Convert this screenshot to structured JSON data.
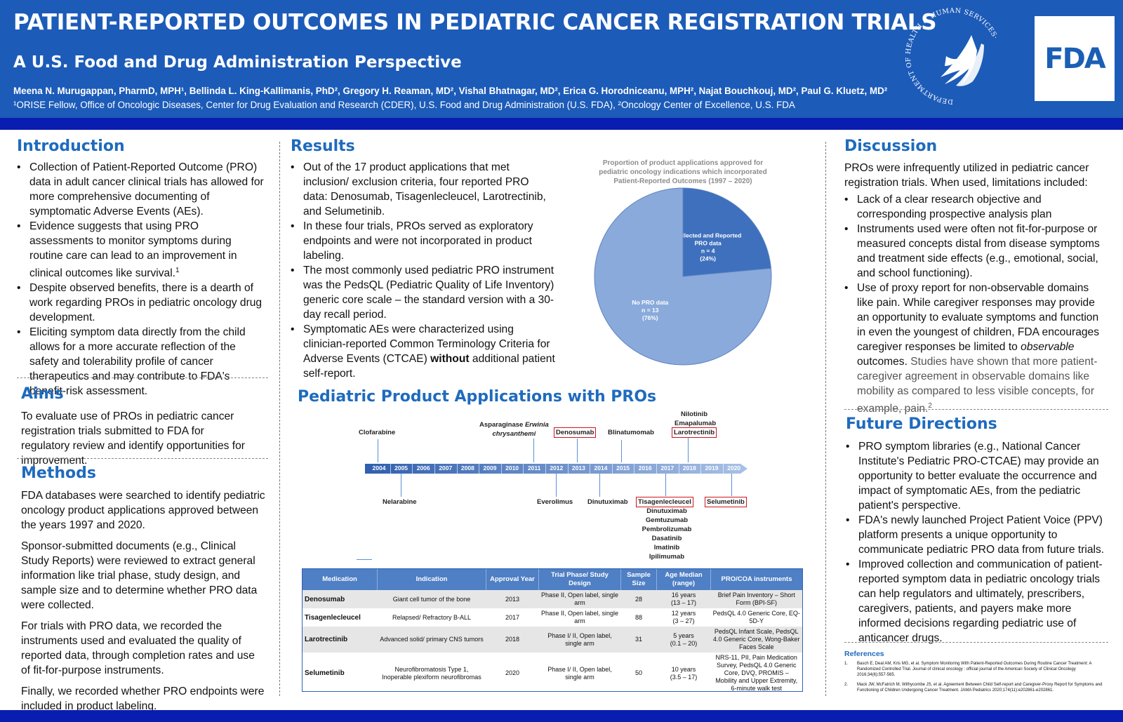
{
  "header": {
    "title": "PATIENT-REPORTED OUTCOMES IN PEDIATRIC CANCER REGISTRATION TRIALS",
    "subtitle": "A U.S. Food and Drug Administration Perspective",
    "authors": "Meena N. Murugappan, PharmD, MPH¹, Bellinda L. King-Kallimanis, PhD², Gregory H. Reaman, MD², Vishal Bhatnagar, MD², Erica G. Horodniceanu, MPH², Najat Bouchkouj, MD², Paul G. Kluetz, MD²",
    "affiliations": "¹ORISE Fellow, Office of Oncologic Diseases, Center for Drug Evaluation and Research (CDER), U.S. Food and Drug Administration (U.S. FDA), ²Oncology Center of Excellence, U.S. FDA",
    "hhs_seal_text": "DEPARTMENT OF HEALTH & HUMAN SERVICES·USA",
    "fda_logo_text": "FDA",
    "colors": {
      "header_bg": "#1c5bb8",
      "band": "#0a1db1",
      "heading": "#1f6bbd"
    }
  },
  "introduction": {
    "title": "Introduction",
    "bullets": [
      "Collection of Patient-Reported Outcome (PRO) data in adult cancer clinical trials has allowed for more comprehensive documenting of symptomatic Adverse Events (AEs).",
      "Evidence suggests that using PRO assessments to monitor symptoms during routine care can lead to an improvement in clinical outcomes like survival.",
      "Despite observed benefits, there is a dearth of work regarding PROs in pediatric oncology drug development.",
      "Eliciting symptom data directly from the child allows for a more accurate reflection of the safety and tolerability profile of cancer therapeutics and may contribute to FDA's benefit-risk assessment."
    ],
    "survival_sup": "1"
  },
  "aims": {
    "title": "Aims",
    "text": "To evaluate use of PROs in pediatric cancer registration trials submitted to FDA for regulatory review and identify opportunities for improvement."
  },
  "methods": {
    "title": "Methods",
    "paragraphs": [
      "FDA databases were searched to identify pediatric oncology product applications approved between the years 1997 and 2020.",
      "Sponsor-submitted documents (e.g., Clinical Study Reports) were reviewed to extract general information like trial phase, study design, and sample size and to determine whether PRO data were collected.",
      "For trials with PRO data, we recorded the instruments used and evaluated the quality of reported data, through completion rates and use of fit-for-purpose instruments.",
      "Finally, we recorded whether PRO endpoints were included in product labeling."
    ]
  },
  "results": {
    "title": "Results",
    "bullets": [
      "Out of the 17 product applications that met inclusion/ exclusion criteria, four reported PRO data: Denosumab, Tisagenlecleucel, Larotrectinib, and Selumetinib.",
      "In these four trials, PROs served as exploratory endpoints and were not incorporated in product labeling.",
      "The most commonly used pediatric PRO instrument was the PedsQL (Pediatric Quality of Life Inventory) generic core scale – the standard version with a 30-day recall period."
    ],
    "last_bullet_pre": "Symptomatic AEs were characterized using clinician-reported Common Terminology Criteria for Adverse Events (CTCAE) ",
    "last_bullet_bold": "without",
    "last_bullet_post": " additional patient self-report."
  },
  "chart_data": {
    "type": "pie",
    "title": "Proportion of product applications approved for pediatric oncology indications which incorporated Patient-Reported Outcomes (1997 – 2020)",
    "slices": [
      {
        "label": "Collected and Reported PRO data",
        "n_label": "n = 4",
        "pct_label": "(24%)",
        "value": 4,
        "color": "#3e70bd"
      },
      {
        "label": "No PRO data",
        "n_label": "n = 13",
        "pct_label": "(76%)",
        "value": 13,
        "color": "#8aaadb"
      }
    ]
  },
  "timeline": {
    "title": "Pediatric Product Applications with PROs",
    "years": [
      "2004",
      "2005",
      "2006",
      "2007",
      "2008",
      "2009",
      "2010",
      "2011",
      "2012",
      "2013",
      "2014",
      "2015",
      "2016",
      "2017",
      "2018",
      "2019",
      "2020"
    ],
    "above": [
      {
        "label": "Clofarabine",
        "year": "2004"
      },
      {
        "label": "Asparaginase Erwinia chrysanthemi",
        "year": "2011"
      },
      {
        "label": "Denosumab",
        "year": "2013"
      },
      {
        "label": "Blinatumomab",
        "year": "2014"
      },
      {
        "label": "Nilotinib",
        "year": "2018"
      },
      {
        "label": "Emapalumab",
        "year": "2018"
      },
      {
        "label": "Larotrectinib",
        "year": "2018"
      }
    ],
    "below": [
      {
        "label": "Nelarabine",
        "year": "2005"
      },
      {
        "label": "Everolimus",
        "year": "2012"
      },
      {
        "label": "Dinutuximab",
        "year": "2015"
      },
      {
        "label": "Tisagenlecleucel",
        "year": "2017"
      },
      {
        "label": "Dinutuximab",
        "year": "2017"
      },
      {
        "label": "Gemtuzumab",
        "year": "2017"
      },
      {
        "label": "Pembrolizumab",
        "year": "2017"
      },
      {
        "label": "Dasatinib",
        "year": "2017"
      },
      {
        "label": "Imatinib",
        "year": "2017"
      },
      {
        "label": "Ipilimumab",
        "year": "2017"
      },
      {
        "label": "Selumetinib",
        "year": "2020"
      }
    ],
    "asparaginase_pre": "Asparaginase ",
    "asparaginase_italic": "Erwinia",
    "asparaginase_line2": "chrysanthemi"
  },
  "table": {
    "headers": [
      "Medication",
      "Indication",
      "Approval Year",
      "Trial Phase/ Study Design",
      "Sample Size",
      "Age Median (range)",
      "PRO/COA instruments"
    ],
    "rows": [
      {
        "medication": "Denosumab",
        "indication": "Giant cell tumor of the bone",
        "year": "2013",
        "design": "Phase II, Open label, single arm",
        "n": "28",
        "age": "16 years",
        "range": "(13 – 17)",
        "instruments": "Brief Pain Inventory – Short Form (BPI-SF)"
      },
      {
        "medication": "Tisagenlecleucel",
        "indication": "Relapsed/ Refractory B-ALL",
        "year": "2017",
        "design": "Phase II, Open label, single arm",
        "n": "88",
        "age": "12 years",
        "range": "(3 – 27)",
        "instruments": "PedsQL 4.0 Generic Core, EQ-5D-Y"
      },
      {
        "medication": "Larotrectinib",
        "indication": "Advanced solid/ primary CNS tumors",
        "year": "2018",
        "design": "Phase I/ II, Open label, single arm",
        "n": "31",
        "age": "5 years",
        "range": "(0.1 – 20)",
        "instruments": "PedsQL Infant Scale, PedsQL 4.0 Generic Core, Wong-Baker Faces Scale"
      },
      {
        "medication": "Selumetinib",
        "indication": "Neurofibromatosis Type 1, Inoperable plexiform neurofibromas",
        "year": "2020",
        "design": "Phase I/ II, Open label, single arm",
        "n": "50",
        "age": "10 years",
        "range": "(3.5 – 17)",
        "instruments": "NRS-11, PII, Pain Medication Survey, PedsQL 4.0 Generic Core, DVQ, PROMIS – Mobility and Upper Extremity, 6-minute walk test"
      }
    ]
  },
  "discussion": {
    "title": "Discussion",
    "intro": "PROs were infrequently utilized in pediatric cancer registration trials. When used, limitations included:",
    "bullets": [
      "Lack of a clear research objective and corresponding prospective analysis plan",
      "Instruments used were often not fit-for-purpose or measured concepts distal from disease symptoms and treatment side effects (e.g., emotional, social, and school functioning)."
    ],
    "b3_pre": "Use of proxy report for non-observable domains like pain. While caregiver responses may provide an opportunity to evaluate symptoms and function in even the youngest of children, FDA encourages caregiver responses be limited to ",
    "b3_italic": "observable",
    "b3_post": " outcomes.",
    "b3_gray": " Studies have shown that more patient-caregiver agreement in observable domains like mobility as compared to less visible concepts, for example, pain.",
    "b3_sup": "2"
  },
  "future": {
    "title": "Future Directions",
    "bullets": [
      "PRO symptom libraries (e.g., National Cancer Institute's Pediatric PRO-CTCAE) may provide an opportunity to better evaluate the occurrence and impact of symptomatic AEs, from the pediatric patient's perspective.",
      "FDA's newly launched Project Patient Voice (PPV) platform presents a unique opportunity to communicate pediatric PRO data from future trials.",
      "Improved collection and communication of patient-reported symptom data in pediatric oncology trials can help regulators and ultimately, prescribers, caregivers, patients, and payers make more informed decisions regarding pediatric use of anticancer drugs."
    ]
  },
  "references": {
    "title": "References",
    "items": [
      {
        "num": "1.",
        "text": "Basch E, Deal AM, Kris MG, et al. Symptom Monitoring With Patient-Reported Outcomes During Routine Cancer Treatment: A Randomized Controlled Trial. Journal of clinical oncology : official journal of the American Society of Clinical Oncology 2016;34(6):557-565."
      },
      {
        "num": "2.",
        "text": "Mack JW, McFatrich M, Withycombe JS, et al. Agreement Between Child Self-report and Caregiver-Proxy Report for Symptoms and Functioning of Children Undergoing Cancer Treatment. JAMA Pediatrics 2020;174(11):e202861-e202861."
      }
    ]
  }
}
